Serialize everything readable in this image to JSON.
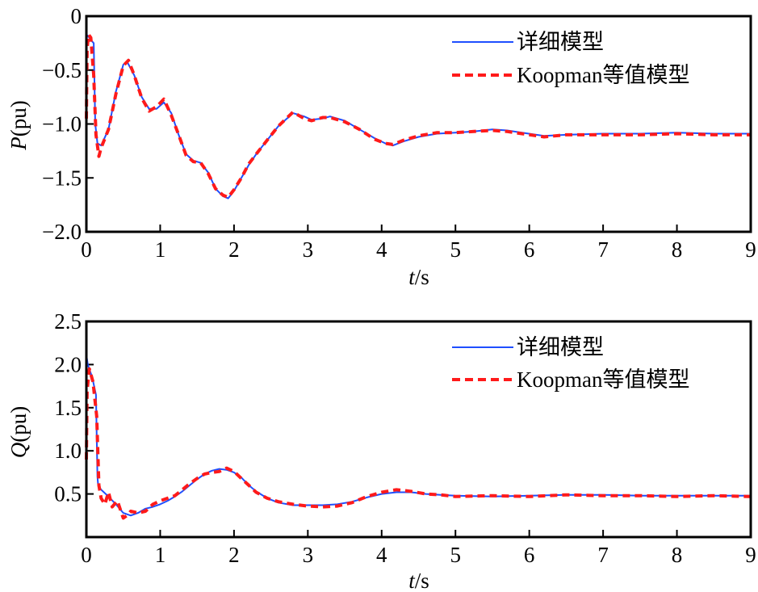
{
  "chart_data": [
    {
      "type": "line",
      "title": "",
      "xlabel": "t/s",
      "ylabel": "P(pu)",
      "xlim": [
        0,
        9
      ],
      "ylim": [
        -2.0,
        0
      ],
      "xticks": [
        "0",
        "1",
        "2",
        "3",
        "4",
        "5",
        "6",
        "7",
        "8",
        "9"
      ],
      "yticks": [
        "0",
        "−0.5",
        "−1.0",
        "−1.5",
        "−2.0"
      ],
      "grid": false,
      "legend_position": "upper right",
      "series": [
        {
          "name": "详细模型",
          "color": "#1f4fff",
          "style": "solid",
          "x": [
            0,
            0.005,
            0.02,
            0.06,
            0.1,
            0.12,
            0.15,
            0.2,
            0.3,
            0.4,
            0.5,
            0.55,
            0.65,
            0.75,
            0.85,
            0.95,
            1.05,
            1.15,
            1.25,
            1.35,
            1.45,
            1.55,
            1.65,
            1.75,
            1.85,
            1.92,
            2.0,
            2.1,
            2.2,
            2.3,
            2.45,
            2.6,
            2.8,
            2.95,
            3.05,
            3.2,
            3.3,
            3.5,
            3.7,
            3.9,
            4.05,
            4.15,
            4.3,
            4.5,
            4.75,
            5.0,
            5.25,
            5.5,
            5.7,
            5.9,
            6.2,
            6.5,
            7.0,
            7.5,
            8.0,
            8.5,
            9.0
          ],
          "y": [
            -1.1,
            -0.2,
            -0.18,
            -0.22,
            -0.25,
            -1.0,
            -1.18,
            -1.2,
            -1.05,
            -0.7,
            -0.45,
            -0.42,
            -0.55,
            -0.75,
            -0.86,
            -0.86,
            -0.8,
            -0.9,
            -1.1,
            -1.28,
            -1.34,
            -1.36,
            -1.45,
            -1.6,
            -1.67,
            -1.69,
            -1.62,
            -1.5,
            -1.38,
            -1.28,
            -1.15,
            -1.02,
            -0.9,
            -0.93,
            -0.96,
            -0.95,
            -0.93,
            -0.97,
            -1.05,
            -1.13,
            -1.18,
            -1.2,
            -1.16,
            -1.12,
            -1.09,
            -1.08,
            -1.07,
            -1.05,
            -1.06,
            -1.08,
            -1.11,
            -1.1,
            -1.09,
            -1.09,
            -1.08,
            -1.09,
            -1.09
          ]
        },
        {
          "name": "Koopman等值模型",
          "color": "#ff1a1a",
          "style": "dashed",
          "x": [
            0,
            0.01,
            0.03,
            0.06,
            0.1,
            0.13,
            0.17,
            0.2,
            0.3,
            0.4,
            0.5,
            0.57,
            0.65,
            0.75,
            0.85,
            0.95,
            1.05,
            1.15,
            1.25,
            1.35,
            1.45,
            1.55,
            1.65,
            1.75,
            1.85,
            1.92,
            2.0,
            2.1,
            2.2,
            2.3,
            2.45,
            2.6,
            2.8,
            2.95,
            3.05,
            3.2,
            3.3,
            3.5,
            3.7,
            3.9,
            4.05,
            4.15,
            4.3,
            4.5,
            4.75,
            5.0,
            5.25,
            5.5,
            5.7,
            5.9,
            6.2,
            6.5,
            7.0,
            7.5,
            8.0,
            8.5,
            9.0
          ],
          "y": [
            -0.95,
            -0.3,
            -0.17,
            -0.2,
            -0.55,
            -1.1,
            -1.3,
            -1.22,
            -1.05,
            -0.72,
            -0.46,
            -0.41,
            -0.55,
            -0.76,
            -0.88,
            -0.84,
            -0.77,
            -0.92,
            -1.1,
            -1.29,
            -1.35,
            -1.36,
            -1.46,
            -1.6,
            -1.66,
            -1.68,
            -1.61,
            -1.5,
            -1.37,
            -1.28,
            -1.15,
            -1.02,
            -0.89,
            -0.95,
            -0.97,
            -0.94,
            -0.94,
            -0.98,
            -1.05,
            -1.14,
            -1.18,
            -1.19,
            -1.15,
            -1.11,
            -1.08,
            -1.08,
            -1.07,
            -1.06,
            -1.07,
            -1.09,
            -1.12,
            -1.1,
            -1.1,
            -1.1,
            -1.09,
            -1.1,
            -1.1
          ]
        }
      ]
    },
    {
      "type": "line",
      "title": "",
      "xlabel": "t/s",
      "ylabel": "Q(pu)",
      "xlim": [
        0,
        9
      ],
      "ylim": [
        0,
        2.5
      ],
      "xticks": [
        "0",
        "1",
        "2",
        "3",
        "4",
        "5",
        "6",
        "7",
        "8",
        "9"
      ],
      "yticks": [
        "2.5",
        "2.0",
        "1.5",
        "1.0",
        "0.5"
      ],
      "grid": false,
      "legend_position": "upper right",
      "series": [
        {
          "name": "详细模型",
          "color": "#1f4fff",
          "style": "solid",
          "x": [
            0,
            0.005,
            0.02,
            0.08,
            0.13,
            0.15,
            0.16,
            0.2,
            0.3,
            0.4,
            0.5,
            0.6,
            0.7,
            0.8,
            0.9,
            1.0,
            1.1,
            1.2,
            1.3,
            1.4,
            1.5,
            1.6,
            1.7,
            1.8,
            1.9,
            2.0,
            2.1,
            2.2,
            2.3,
            2.45,
            2.6,
            2.8,
            3.0,
            3.2,
            3.4,
            3.6,
            3.8,
            4.0,
            4.2,
            4.4,
            4.6,
            4.8,
            5.0,
            5.5,
            6.0,
            6.5,
            7.0,
            7.5,
            8.0,
            8.5,
            9.0
          ],
          "y": [
            0.48,
            2.08,
            2.0,
            1.85,
            1.65,
            0.7,
            0.6,
            0.55,
            0.47,
            0.38,
            0.28,
            0.25,
            0.28,
            0.33,
            0.35,
            0.38,
            0.42,
            0.47,
            0.53,
            0.6,
            0.67,
            0.73,
            0.77,
            0.79,
            0.78,
            0.75,
            0.69,
            0.6,
            0.53,
            0.45,
            0.4,
            0.37,
            0.37,
            0.37,
            0.38,
            0.41,
            0.46,
            0.5,
            0.52,
            0.52,
            0.5,
            0.49,
            0.48,
            0.47,
            0.48,
            0.49,
            0.49,
            0.48,
            0.48,
            0.48,
            0.48
          ]
        },
        {
          "name": "Koopman等值模型",
          "color": "#ff1a1a",
          "style": "dashed",
          "x": [
            0,
            0.01,
            0.04,
            0.09,
            0.14,
            0.17,
            0.2,
            0.25,
            0.3,
            0.35,
            0.42,
            0.5,
            0.55,
            0.6,
            0.7,
            0.8,
            0.9,
            1.0,
            1.1,
            1.2,
            1.3,
            1.4,
            1.5,
            1.6,
            1.7,
            1.8,
            1.9,
            2.0,
            2.1,
            2.2,
            2.3,
            2.45,
            2.6,
            2.8,
            3.0,
            3.2,
            3.4,
            3.6,
            3.8,
            4.0,
            4.2,
            4.4,
            4.6,
            4.8,
            5.0,
            5.5,
            6.0,
            6.5,
            7.0,
            7.5,
            8.0,
            8.5,
            9.0
          ],
          "y": [
            0.9,
            1.7,
            1.95,
            1.8,
            1.4,
            0.6,
            0.45,
            0.38,
            0.52,
            0.35,
            0.42,
            0.22,
            0.25,
            0.3,
            0.28,
            0.3,
            0.38,
            0.42,
            0.45,
            0.48,
            0.55,
            0.62,
            0.68,
            0.73,
            0.75,
            0.76,
            0.8,
            0.76,
            0.68,
            0.6,
            0.52,
            0.45,
            0.41,
            0.38,
            0.36,
            0.35,
            0.36,
            0.4,
            0.47,
            0.52,
            0.55,
            0.53,
            0.5,
            0.49,
            0.47,
            0.48,
            0.47,
            0.49,
            0.48,
            0.48,
            0.47,
            0.48,
            0.47
          ]
        }
      ]
    }
  ],
  "plots": [
    {
      "ylabel_italic": "P",
      "ylabel_rest": "(pu)",
      "xlabel_italic": "t",
      "xlabel_rest": "/s",
      "legend": {
        "solid_label": "详细模型",
        "dashed_label": "Koopman等值模型"
      }
    },
    {
      "ylabel_italic": "Q",
      "ylabel_rest": "(pu)",
      "xlabel_italic": "t",
      "xlabel_rest": "/s",
      "legend": {
        "solid_label": "详细模型",
        "dashed_label": "Koopman等值模型"
      }
    }
  ]
}
